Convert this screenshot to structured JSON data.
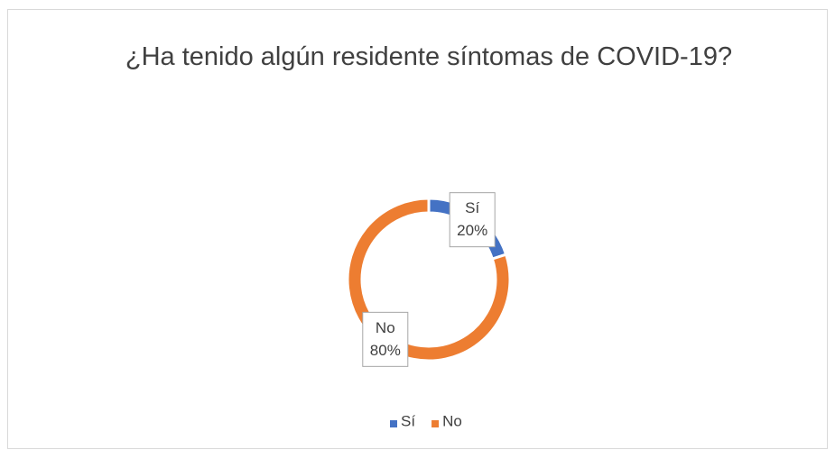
{
  "chart_data": {
    "type": "donut",
    "title": "¿Ha tenido algún residente síntomas de COVID-19?",
    "categories": [
      "Sí",
      "No"
    ],
    "values": [
      20,
      80
    ],
    "value_labels": [
      "20%",
      "80%"
    ],
    "colors": [
      "#4472c4",
      "#ed7d31"
    ],
    "legend": "bottom"
  }
}
